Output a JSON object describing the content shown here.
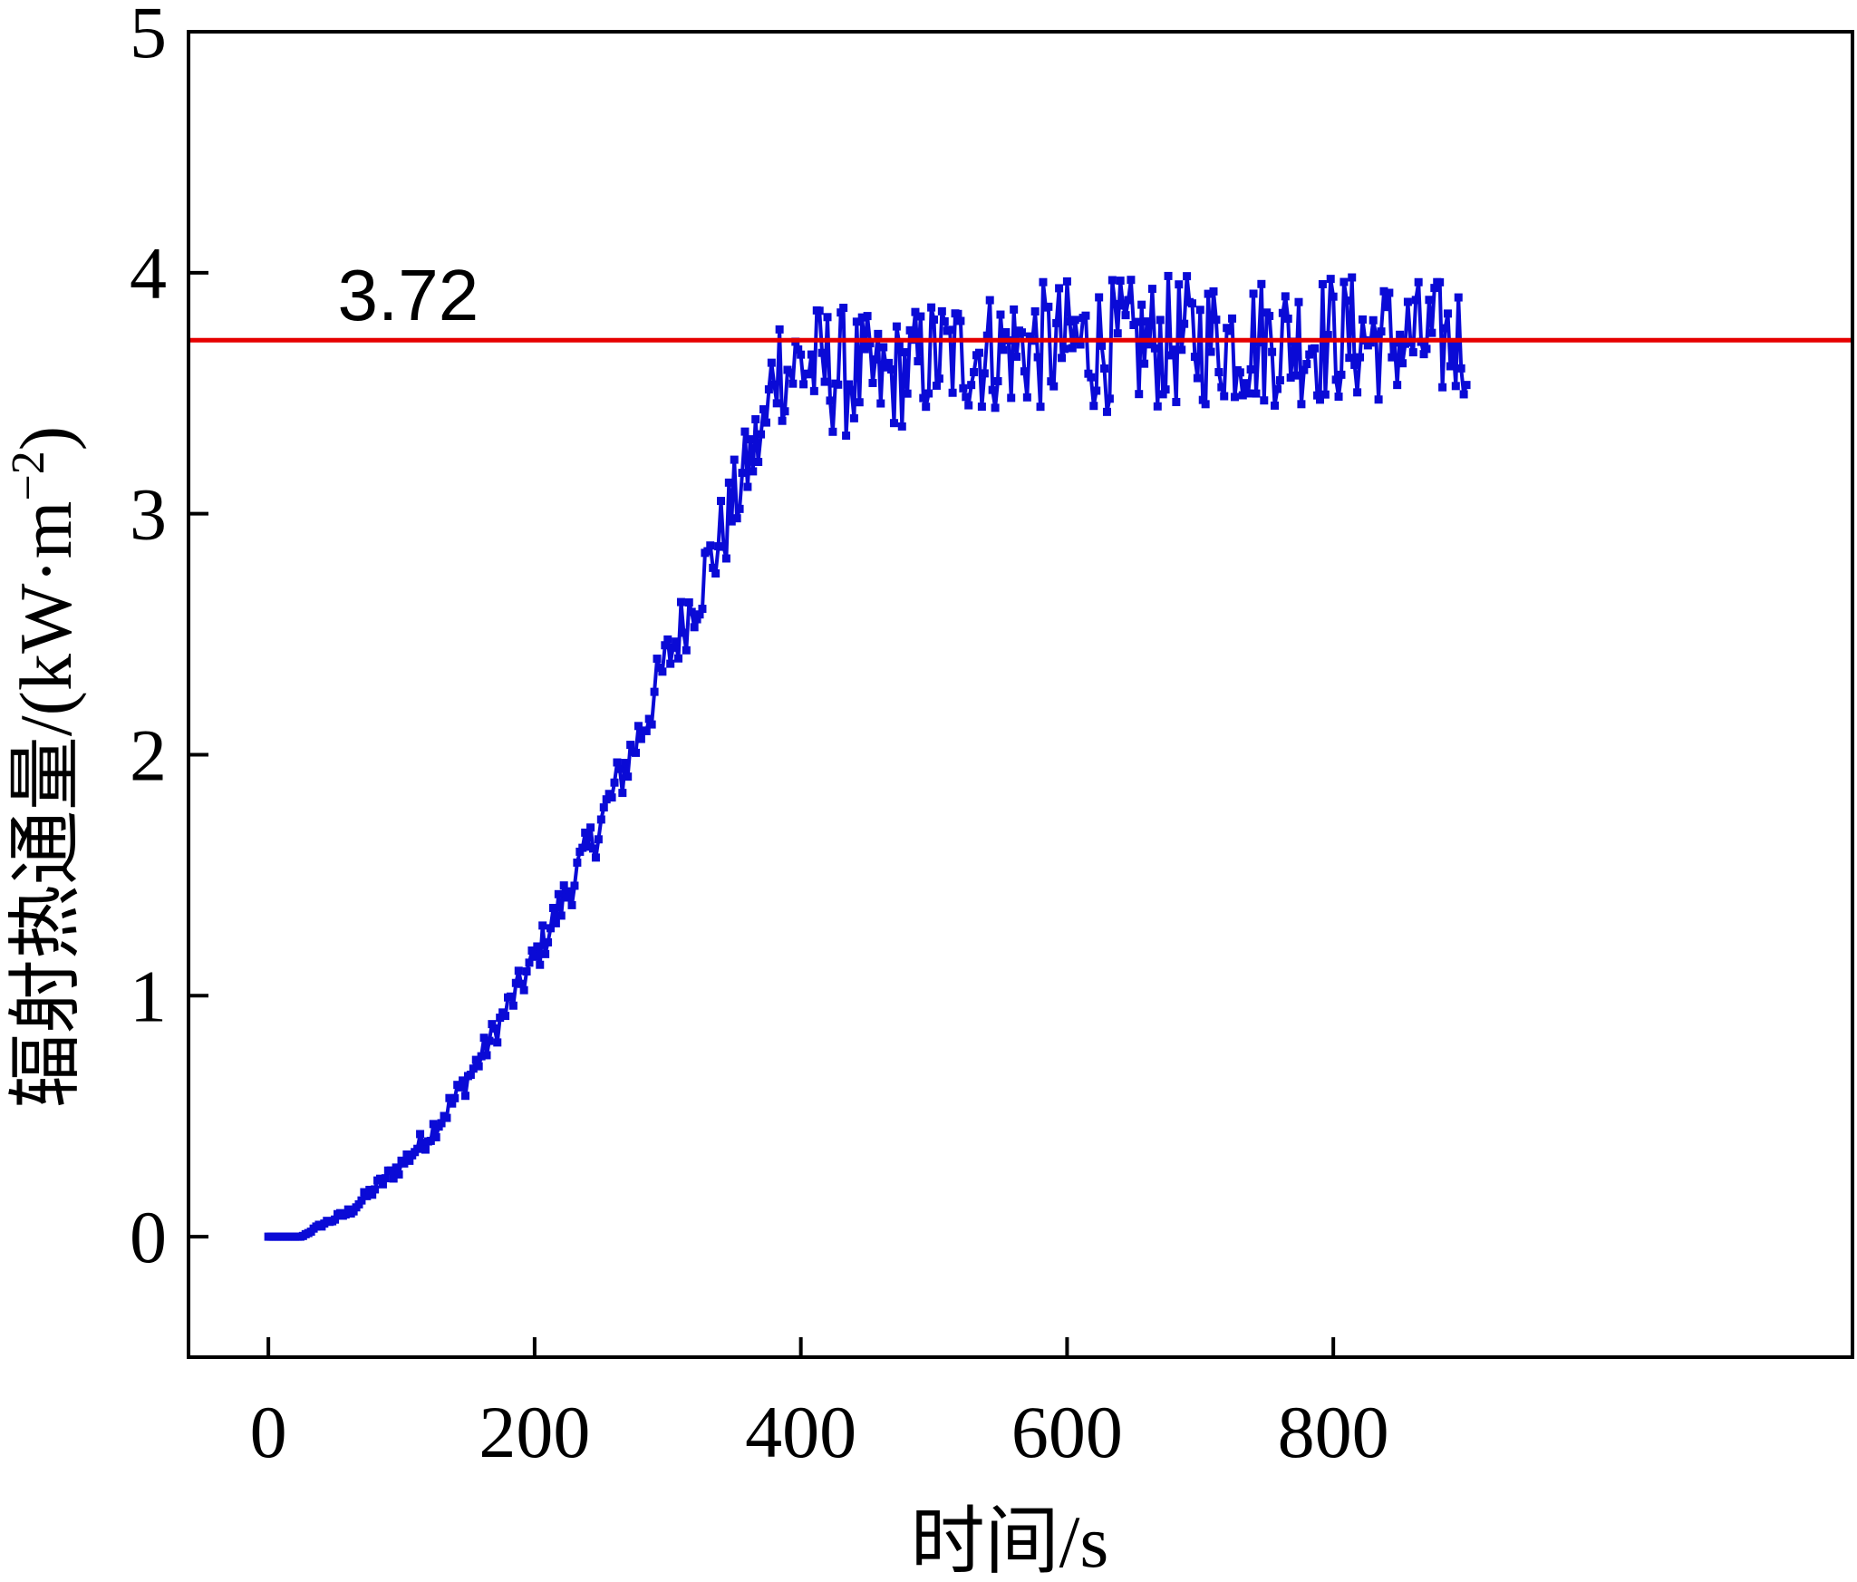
{
  "chart_data": {
    "type": "line",
    "title": "",
    "xlabel": "时间/s",
    "ylabel": "辐射热通量/(kW·m",
    "ylabel_sup": "−2",
    "ylabel_close": ")",
    "xlim": [
      -60,
      1190
    ],
    "ylim": [
      -0.5,
      5.0
    ],
    "x_ticks": [
      0,
      200,
      400,
      600,
      800
    ],
    "x_tick_labels": [
      "0",
      "200",
      "400",
      "600",
      "800"
    ],
    "y_ticks": [
      0,
      1,
      2,
      3,
      4,
      5
    ],
    "y_tick_labels": [
      "0",
      "1",
      "2",
      "3",
      "4",
      "5"
    ],
    "grid": false,
    "series_color": "#0a0ad6",
    "reference_line": {
      "y": 3.72,
      "label": "3.72",
      "color": "#e60000"
    },
    "series": [
      {
        "marker": "square",
        "x": [
          0,
          20,
          25,
          40,
          60,
          80,
          100,
          120,
          140,
          160,
          180,
          200,
          220,
          240,
          260,
          280,
          300,
          320,
          340,
          360,
          375,
          380,
          390,
          400,
          420,
          440,
          460,
          480,
          500,
          550,
          600,
          650,
          700,
          750,
          800,
          850,
          900
        ],
        "y": [
          0.0,
          0.0,
          0.0,
          0.05,
          0.1,
          0.2,
          0.3,
          0.42,
          0.57,
          0.75,
          0.95,
          1.15,
          1.38,
          1.6,
          1.85,
          2.1,
          2.4,
          2.65,
          2.9,
          3.2,
          3.38,
          3.65,
          3.6,
          3.62,
          3.6,
          3.58,
          3.55,
          3.6,
          3.65,
          3.68,
          3.7,
          3.7,
          3.72,
          3.72,
          3.73,
          3.72,
          3.72
        ],
        "noise_amplitude": [
          0,
          0,
          0,
          0.01,
          0.02,
          0.03,
          0.04,
          0.05,
          0.06,
          0.06,
          0.07,
          0.08,
          0.09,
          0.1,
          0.11,
          0.12,
          0.13,
          0.15,
          0.18,
          0.18,
          0.2,
          0.25,
          0.25,
          0.26,
          0.28,
          0.28,
          0.24,
          0.24,
          0.26,
          0.26,
          0.28,
          0.28,
          0.28,
          0.28,
          0.28,
          0.26,
          0.26
        ]
      }
    ]
  }
}
